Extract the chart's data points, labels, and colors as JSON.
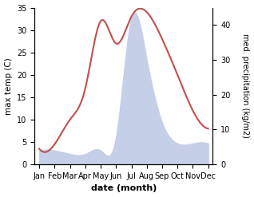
{
  "months": [
    "Jan",
    "Feb",
    "Mar",
    "Apr",
    "May",
    "Jun",
    "Jul",
    "Aug",
    "Sep",
    "Oct",
    "Nov",
    "Dec"
  ],
  "temperature": [
    3.5,
    4.5,
    10,
    17,
    32,
    27,
    33,
    34,
    28,
    20,
    12,
    8
  ],
  "precipitation": [
    4,
    4,
    3,
    3,
    4,
    8,
    42,
    30,
    12,
    6,
    6,
    6
  ],
  "temp_color": "#c0504d",
  "precip_fill_color": "#c5cfe8",
  "xlabel": "date (month)",
  "ylabel_left": "max temp (C)",
  "ylabel_right": "med. precipitation (kg/m2)",
  "ylim_left": [
    0,
    35
  ],
  "ylim_right": [
    0,
    45
  ],
  "yticks_left": [
    0,
    5,
    10,
    15,
    20,
    25,
    30,
    35
  ],
  "yticks_right": [
    0,
    10,
    20,
    30,
    40
  ],
  "background_color": "#ffffff"
}
